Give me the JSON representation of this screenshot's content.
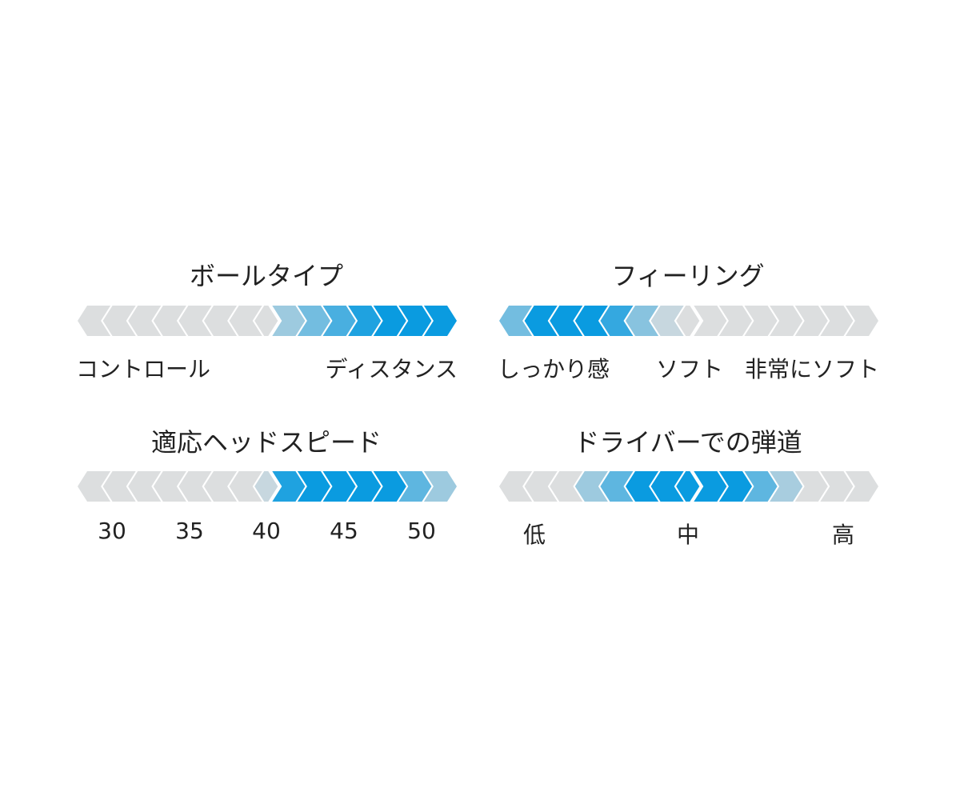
{
  "colors": {
    "gray": "#dcdedf",
    "blue": "#0a9be0"
  },
  "panels": [
    {
      "title": "ボールタイプ",
      "labels": [
        "コントロール",
        "ディスタンス"
      ],
      "levels": [
        0,
        0,
        0,
        0,
        0,
        0,
        0,
        0,
        0.3,
        0.5,
        0.7,
        0.9,
        1,
        1,
        1
      ]
    },
    {
      "title": "フィーリング",
      "labels": [
        "しっかり感",
        "ソフト",
        "非常にソフト"
      ],
      "levels": [
        0.5,
        1,
        1,
        1,
        0.8,
        0.4,
        0.1,
        0,
        0,
        0,
        0,
        0,
        0,
        0,
        0
      ]
    },
    {
      "title": "適応ヘッドスピード",
      "labels": [
        "30",
        "35",
        "40",
        "45",
        "50"
      ],
      "levels": [
        0,
        0,
        0,
        0,
        0,
        0,
        0,
        0.1,
        0.9,
        1,
        1,
        1,
        1,
        0.6,
        0.3
      ]
    },
    {
      "title": "ドライバーでの弾道",
      "labels": [
        "低",
        "中",
        "高"
      ],
      "levels": [
        0,
        0,
        0,
        0.3,
        0.6,
        1,
        1,
        1,
        1,
        1,
        0.6,
        0.25,
        0,
        0,
        0
      ]
    }
  ]
}
